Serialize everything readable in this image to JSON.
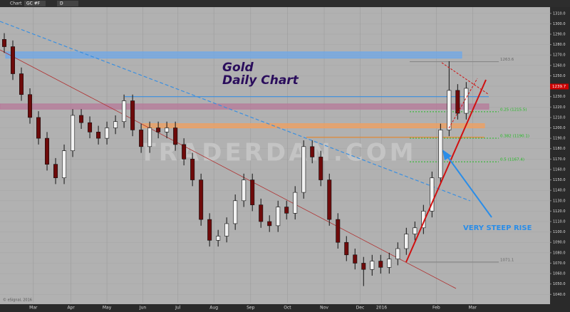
{
  "toolbar": {
    "tab": "Chart",
    "symbol": "GC #F",
    "interval": "D"
  },
  "chart_data": {
    "type": "candlestick",
    "title": "Gold",
    "subtitle": "Daily Chart",
    "watermark": "TRADERDAN.COM",
    "annotation": "VERY STEEP RISE",
    "copyright": "© eSignal, 2016",
    "last_price": {
      "value": 1239.7,
      "color": "#cc0000"
    },
    "up_color": "#f2f2f2",
    "down_color": "#6e0a0a",
    "open": [
      1285,
      1278,
      1252,
      1232,
      1210,
      1190,
      1165,
      1152,
      1178,
      1212,
      1205,
      1196,
      1190,
      1200,
      1206,
      1226,
      1198,
      1182,
      1200,
      1196,
      1200,
      1184,
      1170,
      1150,
      1112,
      1092,
      1096,
      1108,
      1130,
      1150,
      1126,
      1110,
      1106,
      1124,
      1118,
      1138,
      1182,
      1172,
      1150,
      1112,
      1090,
      1078,
      1070,
      1064,
      1072,
      1066,
      1074,
      1084,
      1098,
      1104,
      1120,
      1152,
      1198,
      1236,
      1214
    ],
    "high": [
      1291,
      1284,
      1258,
      1238,
      1216,
      1196,
      1171,
      1184,
      1218,
      1218,
      1211,
      1202,
      1206,
      1212,
      1232,
      1232,
      1204,
      1206,
      1206,
      1206,
      1206,
      1190,
      1176,
      1156,
      1118,
      1102,
      1114,
      1136,
      1156,
      1156,
      1132,
      1116,
      1130,
      1130,
      1144,
      1188,
      1188,
      1178,
      1156,
      1118,
      1096,
      1084,
      1076,
      1078,
      1078,
      1080,
      1090,
      1104,
      1110,
      1126,
      1158,
      1204,
      1264,
      1242,
      1244
    ],
    "low": [
      1272,
      1246,
      1226,
      1204,
      1184,
      1159,
      1146,
      1146,
      1172,
      1199,
      1190,
      1184,
      1184,
      1194,
      1200,
      1192,
      1176,
      1176,
      1190,
      1190,
      1178,
      1164,
      1144,
      1106,
      1086,
      1086,
      1090,
      1102,
      1124,
      1120,
      1104,
      1100,
      1100,
      1112,
      1112,
      1132,
      1166,
      1144,
      1106,
      1084,
      1072,
      1064,
      1048,
      1058,
      1060,
      1060,
      1068,
      1078,
      1092,
      1098,
      1114,
      1146,
      1192,
      1208,
      1208
    ],
    "close": [
      1278,
      1252,
      1232,
      1210,
      1190,
      1165,
      1152,
      1178,
      1212,
      1205,
      1196,
      1190,
      1200,
      1206,
      1226,
      1198,
      1182,
      1200,
      1196,
      1200,
      1184,
      1170,
      1150,
      1112,
      1092,
      1096,
      1108,
      1130,
      1150,
      1126,
      1110,
      1106,
      1124,
      1118,
      1138,
      1182,
      1172,
      1150,
      1112,
      1090,
      1078,
      1070,
      1064,
      1072,
      1066,
      1074,
      1084,
      1098,
      1104,
      1120,
      1152,
      1198,
      1236,
      1214,
      1238
    ],
    "xlim": [
      -0.5,
      63.8
    ],
    "xticks": [
      {
        "value": 3.4,
        "label": "Mar"
      },
      {
        "value": 7.8,
        "label": "Apr"
      },
      {
        "value": 12,
        "label": "May"
      },
      {
        "value": 16.2,
        "label": "Jun"
      },
      {
        "value": 20.3,
        "label": "Jul"
      },
      {
        "value": 24.5,
        "label": "Aug"
      },
      {
        "value": 28.8,
        "label": "Sep"
      },
      {
        "value": 33.1,
        "label": "Oct"
      },
      {
        "value": 37.4,
        "label": "Nov"
      },
      {
        "value": 41.6,
        "label": "Dec"
      },
      {
        "value": 44.1,
        "label": "2016"
      },
      {
        "value": 50.5,
        "label": "Feb"
      },
      {
        "value": 54.75,
        "label": "Mar"
      }
    ],
    "ylim": [
      1032,
      1316
    ],
    "yticks": [
      {
        "value": 1040,
        "label": "1040.0"
      },
      {
        "value": 1050,
        "label": "1050.0"
      },
      {
        "value": 1060,
        "label": "1060.0"
      },
      {
        "value": 1070,
        "label": "1070.0"
      },
      {
        "value": 1080,
        "label": "1080.0"
      },
      {
        "value": 1090,
        "label": "1090.0"
      },
      {
        "value": 1100,
        "label": "1100.0"
      },
      {
        "value": 1110,
        "label": "1110.0"
      },
      {
        "value": 1120,
        "label": "1120.0"
      },
      {
        "value": 1130,
        "label": "1130.0"
      },
      {
        "value": 1140,
        "label": "1140.0"
      },
      {
        "value": 1150,
        "label": "1150.0"
      },
      {
        "value": 1160,
        "label": "1160.0"
      },
      {
        "value": 1170,
        "label": "1170.0"
      },
      {
        "value": 1180,
        "label": "1180.0"
      },
      {
        "value": 1190,
        "label": "1190.0"
      },
      {
        "value": 1200,
        "label": "1200.0"
      },
      {
        "value": 1210,
        "label": "1210.0"
      },
      {
        "value": 1220,
        "label": "1220.0"
      },
      {
        "value": 1230,
        "label": "1230.0"
      },
      {
        "value": 1240,
        "label": "1240.0"
      },
      {
        "value": 1250,
        "label": "1250.0"
      },
      {
        "value": 1260,
        "label": "1260.0"
      },
      {
        "value": 1270,
        "label": "1270.0"
      },
      {
        "value": 1280,
        "label": "1280.0"
      },
      {
        "value": 1290,
        "label": "1290.0"
      },
      {
        "value": 1300,
        "label": "1300.0"
      },
      {
        "value": 1310,
        "label": "1310.0"
      }
    ],
    "bands": [
      {
        "low": 1267,
        "high": 1273,
        "color": "#6fa8e8"
      },
      {
        "low": 1218,
        "high": 1223,
        "color": "#b77a9a"
      },
      {
        "low": 1200,
        "high": 1204,
        "color": "#f0a060"
      }
    ],
    "levels": [
      {
        "value": 1263.6,
        "color": "#888888"
      },
      {
        "value": 1071.1,
        "color": "#888888"
      },
      {
        "value": 1230,
        "color": "#3a8fe0"
      },
      {
        "value": 1191,
        "color": "#e08a3a"
      },
      {
        "value": 1215.5,
        "label": "0.25 (1215.5)",
        "color": "#22bb22"
      },
      {
        "value": 1190.1,
        "label": "0.382 (1190.1)",
        "color": "#22bb22"
      },
      {
        "value": 1167.4,
        "label": "0.5 (1167.4)",
        "color": "#22bb22"
      }
    ],
    "grid": true
  }
}
